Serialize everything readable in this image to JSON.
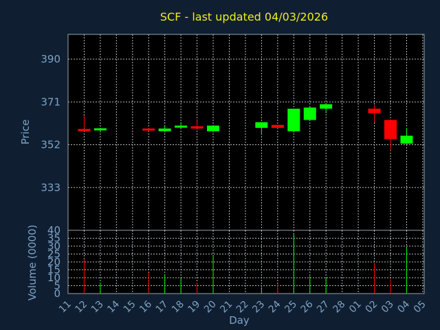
{
  "chart_data": {
    "type": "candlestick",
    "title": "SCF - last updated 04/03/2026",
    "xlabel": "Day",
    "ylabel": "Price",
    "volume_label": "Volume (0000)",
    "x_ticks": [
      "11",
      "12",
      "13",
      "14",
      "15",
      "16",
      "17",
      "18",
      "19",
      "20",
      "21",
      "22",
      "23",
      "24",
      "25",
      "26",
      "27",
      "28",
      "01",
      "02",
      "03",
      "04",
      "05"
    ],
    "price_ticks": [
      390,
      371,
      352,
      333
    ],
    "price_range": [
      314,
      401
    ],
    "volume_ticks": [
      0,
      5,
      10,
      15,
      20,
      25,
      30,
      35,
      40
    ],
    "volume_range": [
      0,
      40
    ],
    "grid": true,
    "colors": {
      "up": "#00ff00",
      "down": "#ff0000",
      "title": "#f0ee1e",
      "axis_text": "#7ea3c7",
      "background": "#0f1f31",
      "plot_background": "#000000"
    },
    "candles": [
      {
        "day": "10",
        "open": 358.5,
        "high": 358.5,
        "low": 357.5,
        "close": 357.5
      },
      {
        "day": "12",
        "open": 359.0,
        "high": 365.0,
        "low": 358.0,
        "close": 358.0
      },
      {
        "day": "13",
        "open": 358.7,
        "high": 359.5,
        "low": 357.5,
        "close": 359.3
      },
      {
        "day": "16",
        "open": 359.2,
        "high": 359.5,
        "low": 358.0,
        "close": 358.3
      },
      {
        "day": "17",
        "open": 358.0,
        "high": 360.5,
        "low": 357.5,
        "close": 359.2
      },
      {
        "day": "18",
        "open": 360.0,
        "high": 362.0,
        "low": 359.5,
        "close": 360.5
      },
      {
        "day": "19",
        "open": 360.2,
        "high": 363.0,
        "low": 359.0,
        "close": 359.2
      },
      {
        "day": "20",
        "open": 358.0,
        "high": 360.5,
        "low": 357.5,
        "close": 360.5
      },
      {
        "day": "23",
        "open": 359.5,
        "high": 362.0,
        "low": 356.5,
        "close": 362.0
      },
      {
        "day": "24",
        "open": 360.8,
        "high": 361.0,
        "low": 359.2,
        "close": 359.5
      },
      {
        "day": "25",
        "open": 358.0,
        "high": 368.0,
        "low": 357.5,
        "close": 368.0
      },
      {
        "day": "26",
        "open": 363.0,
        "high": 369.0,
        "low": 362.5,
        "close": 368.5
      },
      {
        "day": "27",
        "open": 368.0,
        "high": 370.0,
        "low": 366.0,
        "close": 370.0
      },
      {
        "day": "02",
        "open": 368.0,
        "high": 369.5,
        "low": 362.0,
        "close": 366.0
      },
      {
        "day": "03",
        "open": 363.0,
        "high": 363.0,
        "low": 349.5,
        "close": 354.5
      },
      {
        "day": "04",
        "open": 352.5,
        "high": 359.5,
        "low": 352.0,
        "close": 356.0
      }
    ],
    "volume": [
      {
        "day": "12",
        "value": 22,
        "dir": "down"
      },
      {
        "day": "13",
        "value": 7,
        "dir": "up"
      },
      {
        "day": "16",
        "value": 13,
        "dir": "down"
      },
      {
        "day": "17",
        "value": 12,
        "dir": "up"
      },
      {
        "day": "18",
        "value": 10,
        "dir": "up"
      },
      {
        "day": "19",
        "value": 7,
        "dir": "down"
      },
      {
        "day": "20",
        "value": 24,
        "dir": "up"
      },
      {
        "day": "23",
        "value": 4,
        "dir": "up"
      },
      {
        "day": "24",
        "value": 6,
        "dir": "down"
      },
      {
        "day": "25",
        "value": 38,
        "dir": "up"
      },
      {
        "day": "26",
        "value": 11,
        "dir": "up"
      },
      {
        "day": "27",
        "value": 10,
        "dir": "up"
      },
      {
        "day": "02",
        "value": 19,
        "dir": "down"
      },
      {
        "day": "03",
        "value": 9,
        "dir": "down"
      },
      {
        "day": "04",
        "value": 29,
        "dir": "up"
      }
    ]
  }
}
